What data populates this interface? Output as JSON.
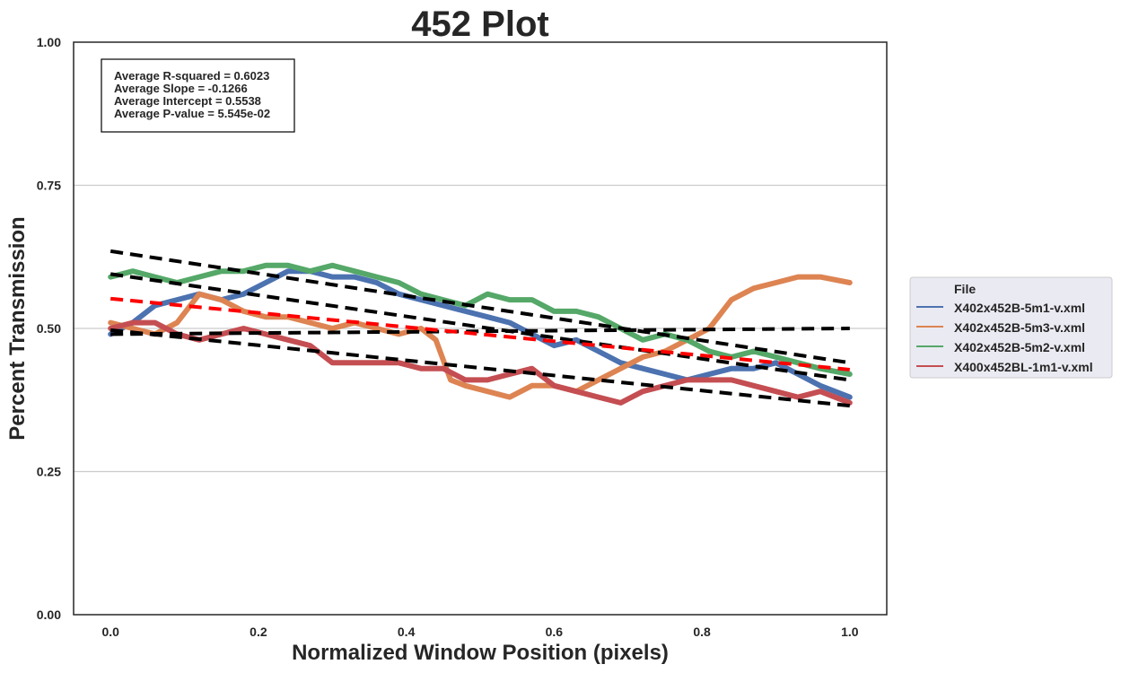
{
  "chart_data": {
    "type": "line",
    "title": "452 Plot",
    "xlabel": "Normalized Window Position (pixels)",
    "ylabel": "Percent Transmission",
    "xlim": [
      -0.05,
      1.05
    ],
    "ylim": [
      0.0,
      1.0
    ],
    "xticks": [
      "0.0",
      "0.2",
      "0.4",
      "0.6",
      "0.8",
      "1.0"
    ],
    "yticks": [
      "0.00",
      "0.25",
      "0.50",
      "0.75",
      "1.00"
    ],
    "grid": "horizontal",
    "stats": [
      "Average R-squared = 0.6023",
      "Average Slope = -0.1266",
      "Average Intercept = 0.5538",
      "Average P-value = 5.545e-02"
    ],
    "legend": {
      "title": "File",
      "placement": "center-right outside"
    },
    "series": [
      {
        "name": "X402x452B-5m1-v.xml",
        "color": "#4c72b0",
        "x": [
          0.0,
          0.03,
          0.06,
          0.09,
          0.12,
          0.15,
          0.18,
          0.21,
          0.24,
          0.27,
          0.3,
          0.33,
          0.36,
          0.39,
          0.42,
          0.45,
          0.48,
          0.51,
          0.54,
          0.57,
          0.6,
          0.63,
          0.66,
          0.69,
          0.72,
          0.75,
          0.78,
          0.81,
          0.84,
          0.87,
          0.9,
          0.93,
          0.96,
          1.0
        ],
        "y": [
          0.49,
          0.51,
          0.54,
          0.55,
          0.56,
          0.55,
          0.56,
          0.58,
          0.6,
          0.6,
          0.59,
          0.59,
          0.58,
          0.56,
          0.55,
          0.54,
          0.53,
          0.52,
          0.51,
          0.49,
          0.47,
          0.48,
          0.46,
          0.44,
          0.43,
          0.42,
          0.41,
          0.42,
          0.43,
          0.43,
          0.44,
          0.42,
          0.4,
          0.38
        ]
      },
      {
        "name": "X402x452B-5m3-v.xml",
        "color": "#dd8452",
        "x": [
          0.0,
          0.03,
          0.06,
          0.09,
          0.12,
          0.15,
          0.18,
          0.21,
          0.24,
          0.27,
          0.3,
          0.33,
          0.36,
          0.39,
          0.42,
          0.44,
          0.46,
          0.48,
          0.51,
          0.54,
          0.57,
          0.6,
          0.63,
          0.66,
          0.69,
          0.72,
          0.75,
          0.78,
          0.81,
          0.84,
          0.87,
          0.9,
          0.93,
          0.96,
          1.0
        ],
        "y": [
          0.51,
          0.5,
          0.49,
          0.51,
          0.56,
          0.55,
          0.53,
          0.52,
          0.52,
          0.51,
          0.5,
          0.51,
          0.5,
          0.49,
          0.5,
          0.48,
          0.41,
          0.4,
          0.39,
          0.38,
          0.4,
          0.4,
          0.39,
          0.41,
          0.43,
          0.45,
          0.46,
          0.48,
          0.5,
          0.55,
          0.57,
          0.58,
          0.59,
          0.59,
          0.58
        ]
      },
      {
        "name": "X402x452B-5m2-v.xml",
        "color": "#55a868",
        "x": [
          0.0,
          0.03,
          0.06,
          0.09,
          0.12,
          0.15,
          0.18,
          0.21,
          0.24,
          0.27,
          0.3,
          0.33,
          0.36,
          0.39,
          0.42,
          0.45,
          0.48,
          0.51,
          0.54,
          0.57,
          0.6,
          0.63,
          0.66,
          0.69,
          0.72,
          0.75,
          0.78,
          0.81,
          0.84,
          0.87,
          0.9,
          0.93,
          0.96,
          1.0
        ],
        "y": [
          0.59,
          0.6,
          0.59,
          0.58,
          0.59,
          0.6,
          0.6,
          0.61,
          0.61,
          0.6,
          0.61,
          0.6,
          0.59,
          0.58,
          0.56,
          0.55,
          0.54,
          0.56,
          0.55,
          0.55,
          0.53,
          0.53,
          0.52,
          0.5,
          0.48,
          0.49,
          0.48,
          0.46,
          0.45,
          0.46,
          0.45,
          0.44,
          0.43,
          0.42
        ]
      },
      {
        "name": "X400x452BL-1m1-v.xml",
        "color": "#c44e52",
        "x": [
          0.0,
          0.03,
          0.06,
          0.09,
          0.12,
          0.15,
          0.18,
          0.21,
          0.24,
          0.27,
          0.3,
          0.33,
          0.36,
          0.39,
          0.42,
          0.45,
          0.48,
          0.51,
          0.54,
          0.57,
          0.6,
          0.63,
          0.66,
          0.69,
          0.72,
          0.75,
          0.78,
          0.81,
          0.84,
          0.87,
          0.9,
          0.93,
          0.96,
          1.0
        ],
        "y": [
          0.5,
          0.51,
          0.51,
          0.49,
          0.48,
          0.49,
          0.5,
          0.49,
          0.48,
          0.47,
          0.44,
          0.44,
          0.44,
          0.44,
          0.43,
          0.43,
          0.41,
          0.41,
          0.42,
          0.43,
          0.4,
          0.39,
          0.38,
          0.37,
          0.39,
          0.4,
          0.41,
          0.41,
          0.41,
          0.4,
          0.39,
          0.38,
          0.39,
          0.37
        ]
      }
    ],
    "fit_lines": [
      {
        "x": [
          0.0,
          1.0
        ],
        "y": [
          0.635,
          0.44
        ],
        "color": "#000000"
      },
      {
        "x": [
          0.0,
          1.0
        ],
        "y": [
          0.595,
          0.41
        ],
        "color": "#000000"
      },
      {
        "x": [
          0.0,
          1.0
        ],
        "y": [
          0.49,
          0.5
        ],
        "color": "#000000"
      },
      {
        "x": [
          0.0,
          1.0
        ],
        "y": [
          0.497,
          0.365
        ],
        "color": "#000000"
      },
      {
        "x": [
          0.0,
          1.0
        ],
        "y": [
          0.552,
          0.428
        ],
        "color": "#ff0000"
      }
    ]
  }
}
